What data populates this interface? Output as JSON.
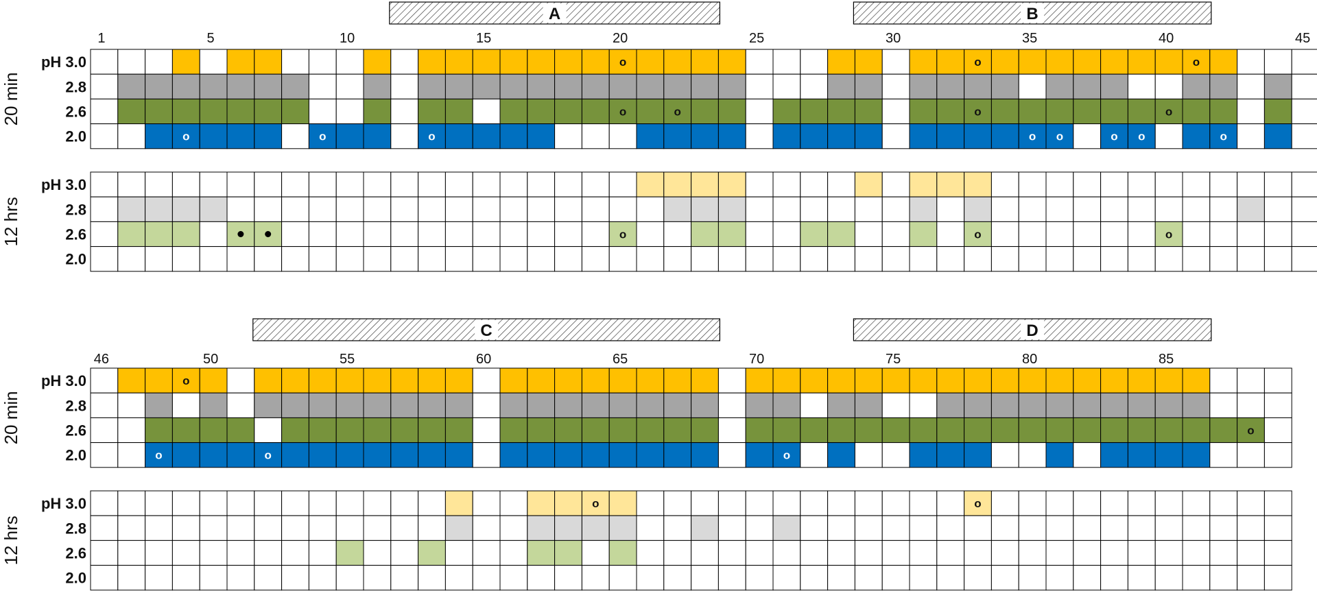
{
  "colors": {
    "strong": {
      "3.0": "#FFC000",
      "2.8": "#A5A5A5",
      "2.6": "#77933C",
      "2.0": "#0070C0"
    },
    "light": {
      "3.0": "#FFE699",
      "2.8": "#D9D9D9",
      "2.6": "#C4D79B",
      "2.0": "#9DC3E6"
    },
    "grid": "#000000",
    "empty": "#FFFFFF"
  },
  "chart_data": [
    {
      "type": "table",
      "start_position": 1,
      "count": 45,
      "numbers": [
        1,
        5,
        10,
        15,
        20,
        25,
        30,
        35,
        40,
        45
      ],
      "regions": [
        {
          "label": "A",
          "from": 12,
          "to": 23
        },
        {
          "label": "B",
          "from": 29,
          "to": 41
        }
      ],
      "blocks": [
        {
          "time": "20 min",
          "intensity": "strong",
          "rows": [
            {
              "label": "pH 3.0",
              "ph": "3.0",
              "filled": [
                4,
                6,
                7,
                11,
                13,
                14,
                15,
                16,
                17,
                18,
                19,
                20,
                21,
                22,
                23,
                24,
                28,
                29,
                31,
                32,
                33,
                34,
                35,
                36,
                37,
                38,
                39,
                40,
                41,
                42
              ],
              "open_marks": [
                20,
                33,
                41
              ],
              "filled_marks": []
            },
            {
              "label": "2.8",
              "ph": "2.8",
              "filled": [
                2,
                3,
                4,
                5,
                6,
                7,
                8,
                11,
                13,
                14,
                15,
                16,
                17,
                18,
                19,
                20,
                21,
                22,
                23,
                24,
                28,
                29,
                31,
                32,
                33,
                34,
                36,
                37,
                38,
                41,
                42,
                44
              ],
              "open_marks": [],
              "filled_marks": []
            },
            {
              "label": "2.6",
              "ph": "2.6",
              "filled": [
                2,
                3,
                4,
                5,
                6,
                7,
                8,
                11,
                13,
                14,
                16,
                17,
                18,
                19,
                20,
                21,
                22,
                23,
                24,
                26,
                27,
                28,
                29,
                31,
                32,
                33,
                34,
                35,
                36,
                37,
                38,
                39,
                40,
                41,
                42,
                44
              ],
              "open_marks": [
                20,
                22,
                33,
                40
              ],
              "filled_marks": []
            },
            {
              "label": "2.0",
              "ph": "2.0",
              "filled": [
                3,
                4,
                5,
                6,
                7,
                9,
                10,
                11,
                13,
                14,
                15,
                16,
                17,
                21,
                22,
                23,
                24,
                26,
                27,
                28,
                29,
                31,
                32,
                33,
                34,
                35,
                36,
                38,
                39,
                41,
                42,
                44
              ],
              "open_marks": [
                4,
                9,
                13,
                35,
                36,
                38,
                39,
                42
              ],
              "filled_marks": []
            }
          ]
        },
        {
          "time": "12 hrs",
          "intensity": "light",
          "rows": [
            {
              "label": "pH 3.0",
              "ph": "3.0",
              "filled": [
                21,
                22,
                23,
                24,
                29,
                31,
                32,
                33
              ],
              "open_marks": [],
              "filled_marks": []
            },
            {
              "label": "2.8",
              "ph": "2.8",
              "filled": [
                2,
                3,
                4,
                5,
                22,
                23,
                24,
                31,
                33,
                43
              ],
              "open_marks": [],
              "filled_marks": []
            },
            {
              "label": "2.6",
              "ph": "2.6",
              "filled": [
                2,
                3,
                4,
                6,
                7,
                20,
                23,
                24,
                27,
                28,
                31,
                33,
                40
              ],
              "open_marks": [
                20,
                33,
                40
              ],
              "filled_marks": [
                6,
                7
              ]
            },
            {
              "label": "2.0",
              "ph": "2.0",
              "filled": [],
              "open_marks": [],
              "filled_marks": []
            }
          ]
        }
      ]
    },
    {
      "type": "table",
      "start_position": 46,
      "count": 44,
      "numbers": [
        46,
        50,
        55,
        60,
        65,
        70,
        75,
        80,
        85
      ],
      "regions": [
        {
          "label": "C",
          "from": 52,
          "to": 68
        },
        {
          "label": "D",
          "from": 74,
          "to": 86
        }
      ],
      "blocks": [
        {
          "time": "20 min",
          "intensity": "strong",
          "rows": [
            {
              "label": "pH 3.0",
              "ph": "3.0",
              "filled": [
                47,
                48,
                49,
                50,
                52,
                53,
                54,
                55,
                56,
                57,
                58,
                59,
                61,
                62,
                63,
                64,
                65,
                66,
                67,
                68,
                70,
                71,
                72,
                73,
                74,
                75,
                76,
                77,
                78,
                79,
                80,
                81,
                82,
                83,
                84,
                85,
                86
              ],
              "open_marks": [
                49
              ],
              "filled_marks": []
            },
            {
              "label": "2.8",
              "ph": "2.8",
              "filled": [
                48,
                50,
                52,
                53,
                54,
                55,
                56,
                57,
                58,
                59,
                61,
                62,
                63,
                64,
                65,
                66,
                67,
                68,
                70,
                71,
                73,
                74,
                77,
                78,
                79,
                80,
                81,
                82,
                83,
                84,
                85,
                86
              ],
              "open_marks": [],
              "filled_marks": []
            },
            {
              "label": "2.6",
              "ph": "2.6",
              "filled": [
                48,
                49,
                50,
                51,
                53,
                54,
                55,
                56,
                57,
                58,
                59,
                61,
                62,
                63,
                64,
                65,
                66,
                67,
                68,
                70,
                71,
                72,
                73,
                74,
                75,
                76,
                77,
                78,
                79,
                80,
                81,
                82,
                83,
                84,
                85,
                86,
                87,
                88
              ],
              "open_marks": [
                88
              ],
              "filled_marks": []
            },
            {
              "label": "2.0",
              "ph": "2.0",
              "filled": [
                48,
                49,
                50,
                51,
                52,
                53,
                54,
                55,
                56,
                57,
                58,
                59,
                61,
                62,
                63,
                64,
                65,
                66,
                67,
                68,
                70,
                71,
                73,
                76,
                77,
                78,
                81,
                83,
                84,
                85,
                86
              ],
              "open_marks": [
                48,
                52,
                71
              ],
              "filled_marks": []
            }
          ]
        },
        {
          "time": "12 hrs",
          "intensity": "light",
          "rows": [
            {
              "label": "pH 3.0",
              "ph": "3.0",
              "filled": [
                59,
                62,
                63,
                64,
                65,
                78
              ],
              "open_marks": [
                64,
                78
              ],
              "filled_marks": []
            },
            {
              "label": "2.8",
              "ph": "2.8",
              "filled": [
                59,
                62,
                63,
                64,
                65,
                68,
                71
              ],
              "open_marks": [],
              "filled_marks": []
            },
            {
              "label": "2.6",
              "ph": "2.6",
              "filled": [
                55,
                58,
                62,
                63,
                65
              ],
              "open_marks": [],
              "filled_marks": []
            },
            {
              "label": "2.0",
              "ph": "2.0",
              "filled": [],
              "open_marks": [],
              "filled_marks": []
            }
          ]
        }
      ]
    }
  ]
}
